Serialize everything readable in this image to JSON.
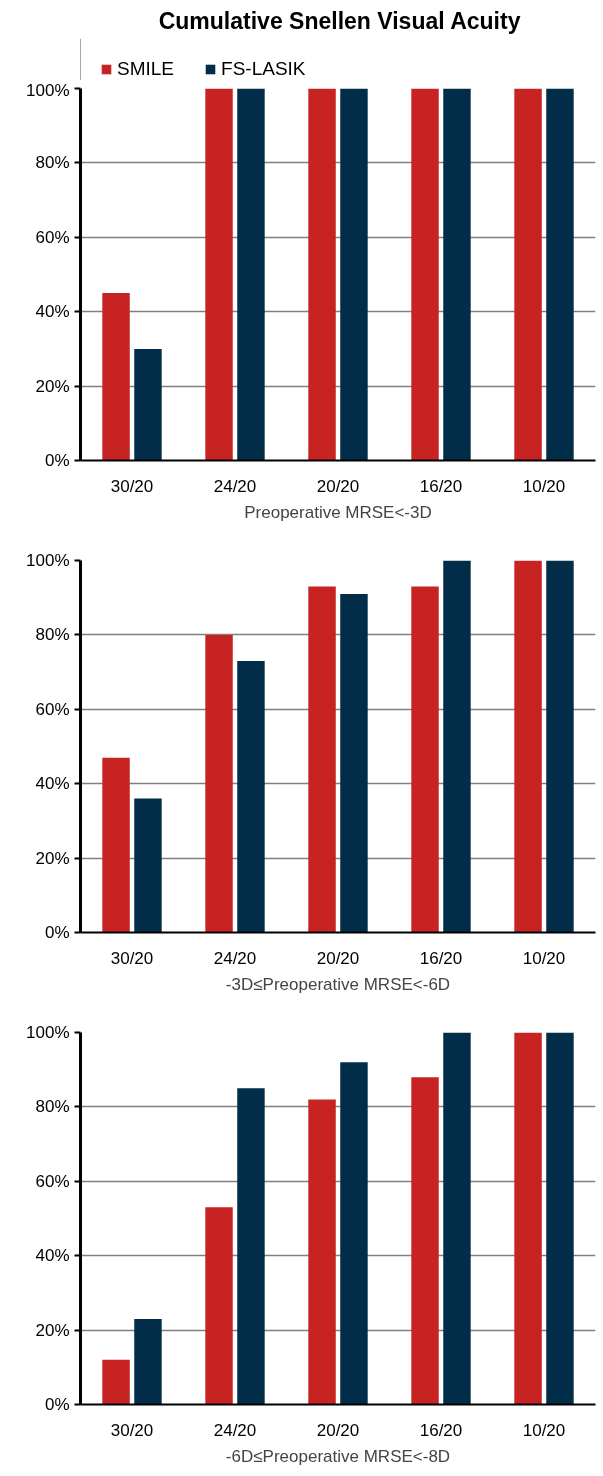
{
  "chart_data": [
    {
      "type": "bar",
      "title": "Cumulative Snellen Visual Acuity",
      "xlabel": "Preoperative MRSE<-3D",
      "categories": [
        "30/20",
        "24/20",
        "20/20",
        "16/20",
        "10/20"
      ],
      "series": [
        {
          "name": "SMILE",
          "color": "#c82323",
          "values": [
            45,
            100,
            100,
            100,
            100
          ]
        },
        {
          "name": "FS-LASIK",
          "color": "#022d48",
          "values": [
            30,
            100,
            100,
            100,
            100
          ]
        }
      ],
      "ylim": [
        0,
        100
      ],
      "yticks": [
        {
          "value": 0,
          "label": "0%"
        },
        {
          "value": 20,
          "label": "20%"
        },
        {
          "value": 40,
          "label": "40%"
        },
        {
          "value": 60,
          "label": "60%"
        },
        {
          "value": 80,
          "label": "80%"
        },
        {
          "value": 100,
          "label": "100%"
        }
      ],
      "grid": "y",
      "legend": "top left"
    },
    {
      "type": "bar",
      "xlabel": "-3D≤Preoperative MRSE<-6D",
      "categories": [
        "30/20",
        "24/20",
        "20/20",
        "16/20",
        "10/20"
      ],
      "series": [
        {
          "color": "#c82323",
          "values": [
            47,
            80,
            93,
            93,
            100
          ]
        },
        {
          "color": "#022d48",
          "values": [
            36,
            73,
            91,
            100,
            100
          ]
        }
      ],
      "ylim": [
        0,
        100
      ],
      "yticks": [
        {
          "value": 0,
          "label": "0%"
        },
        {
          "value": 20,
          "label": "20%"
        },
        {
          "value": 40,
          "label": "40%"
        },
        {
          "value": 60,
          "label": "60%"
        },
        {
          "value": 80,
          "label": "80%"
        },
        {
          "value": 100,
          "label": "100%"
        }
      ],
      "grid": "y"
    },
    {
      "type": "bar",
      "xlabel": "-6D≤Preoperative MRSE<-8D",
      "categories": [
        "30/20",
        "24/20",
        "20/20",
        "16/20",
        "10/20"
      ],
      "series": [
        {
          "color": "#c82323",
          "values": [
            12,
            53,
            82,
            88,
            100
          ]
        },
        {
          "color": "#022d48",
          "values": [
            23,
            85,
            92,
            100,
            100
          ]
        }
      ],
      "ylim": [
        0,
        100
      ],
      "yticks": [
        {
          "value": 0,
          "label": "0%"
        },
        {
          "value": 20,
          "label": "20%"
        },
        {
          "value": 40,
          "label": "40%"
        },
        {
          "value": 60,
          "label": "60%"
        },
        {
          "value": 80,
          "label": "80%"
        },
        {
          "value": 100,
          "label": "100%"
        }
      ],
      "grid": "y"
    }
  ]
}
